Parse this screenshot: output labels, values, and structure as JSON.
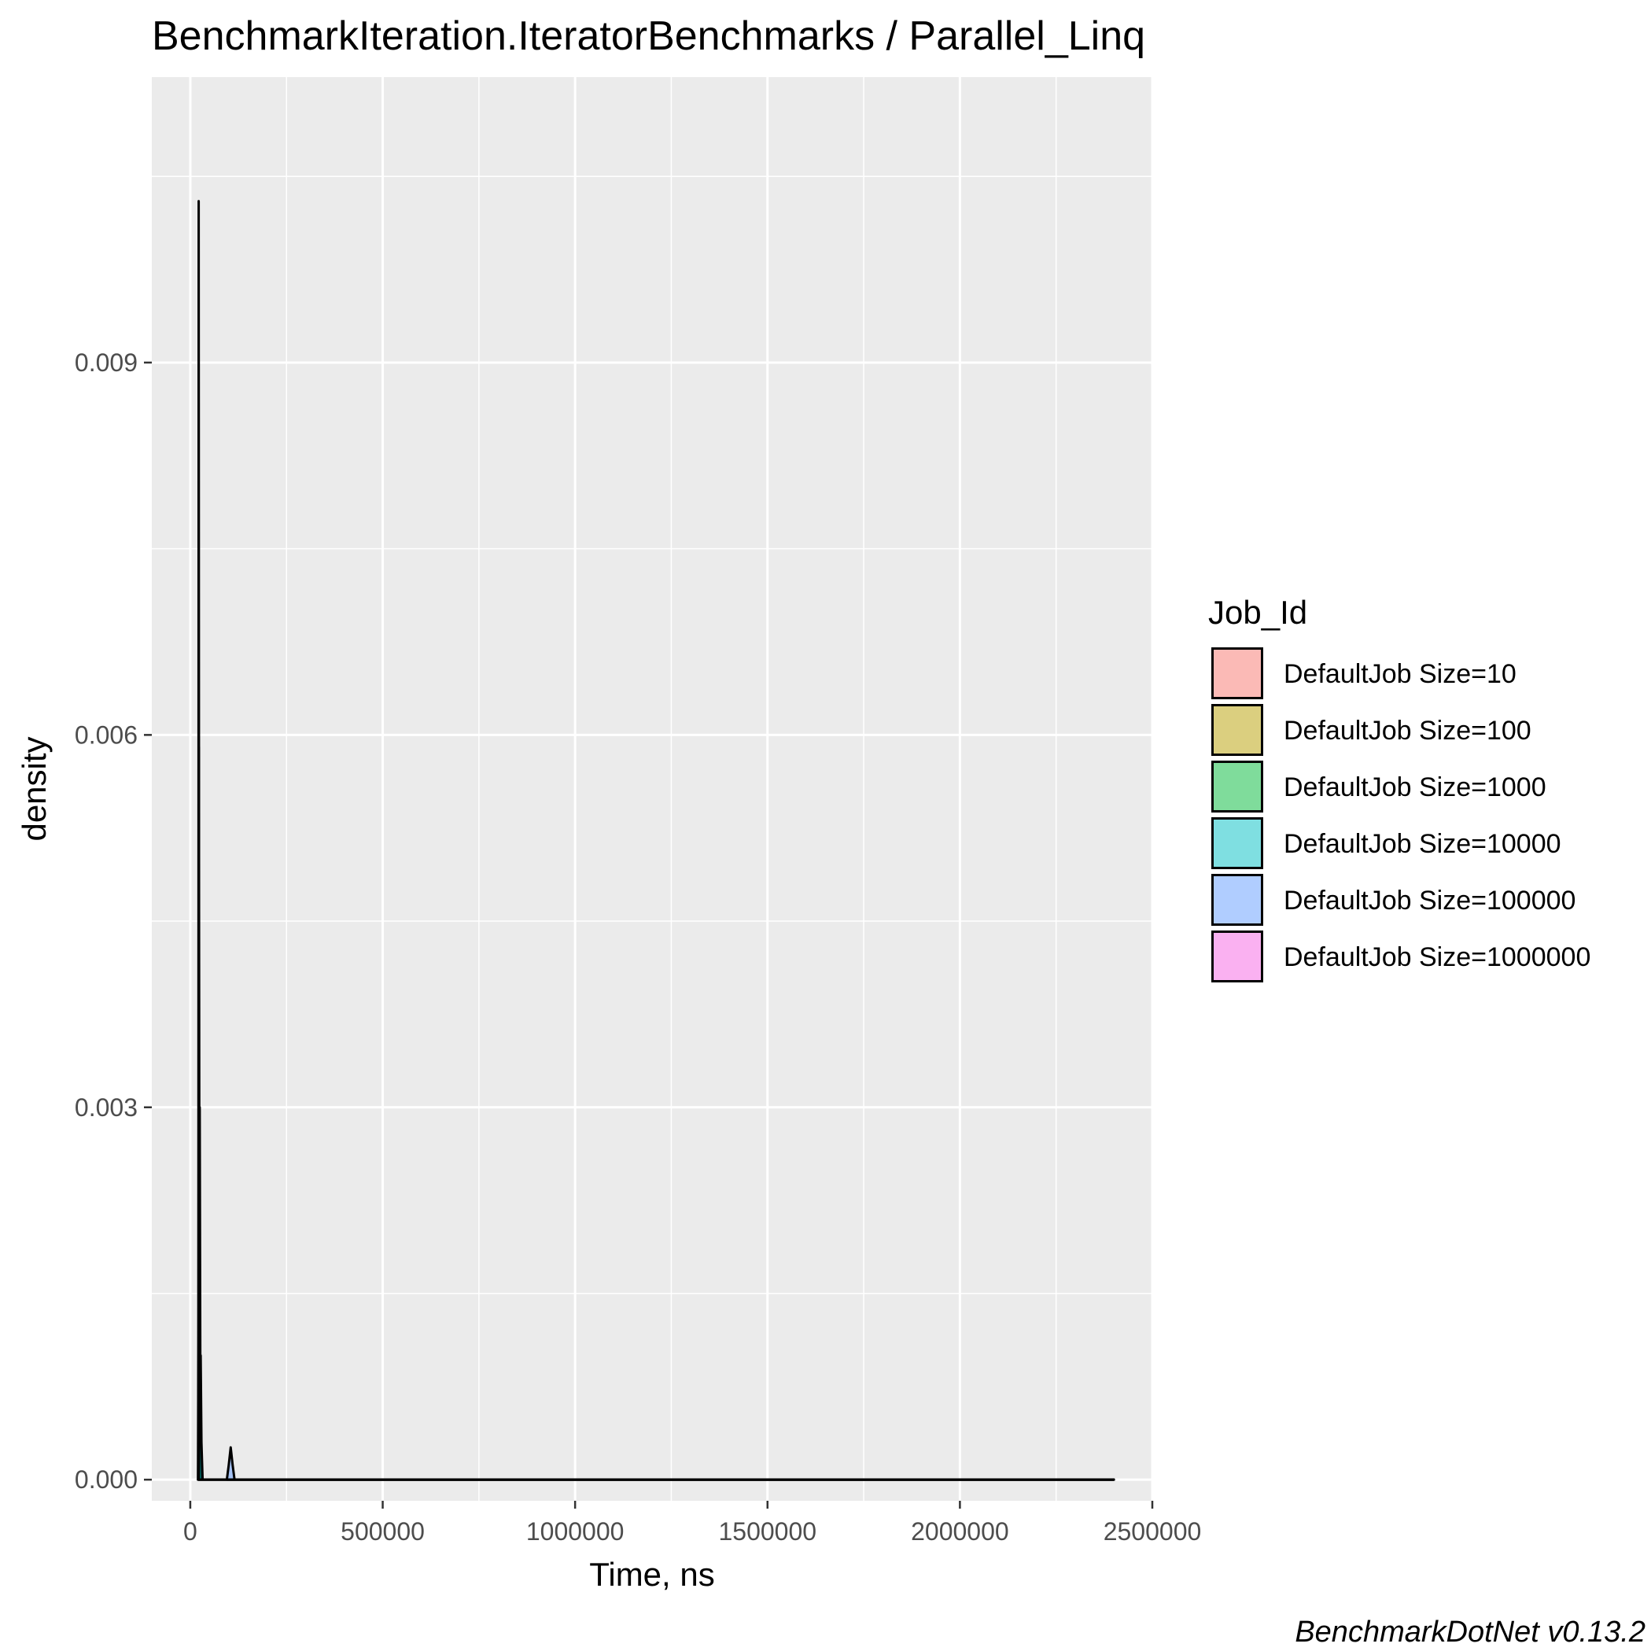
{
  "chart_data": {
    "type": "area",
    "title": "BenchmarkIteration.IteratorBenchmarks / Parallel_Linq",
    "xlabel": "Time, ns",
    "ylabel": "density",
    "xlim": [
      -100000,
      2500000
    ],
    "ylim": [
      -0.00017,
      0.0113
    ],
    "x_ticks": [
      0,
      500000,
      1000000,
      1500000,
      2000000,
      2500000
    ],
    "x_tick_labels": [
      "0",
      "500000",
      "1000000",
      "1500000",
      "2000000",
      "2500000"
    ],
    "y_ticks": [
      0,
      0.003,
      0.006,
      0.009
    ],
    "y_tick_labels": [
      "0.000",
      "0.003",
      "0.006",
      "0.009"
    ],
    "grid": true,
    "legend": {
      "title": "Job_Id",
      "position": "right"
    },
    "series": [
      {
        "name": "DefaultJob Size=10",
        "color": "#F8766D",
        "points": [
          [
            20000,
            0
          ],
          [
            21000,
            0.0011
          ],
          [
            21800,
            0.0103
          ],
          [
            22600,
            0.0052
          ],
          [
            24000,
            0
          ],
          [
            2400000,
            0
          ]
        ]
      },
      {
        "name": "DefaultJob Size=100",
        "color": "#B79F00",
        "points": [
          [
            20500,
            0
          ],
          [
            21500,
            0.0014
          ],
          [
            22300,
            0.0059
          ],
          [
            23200,
            0.002
          ],
          [
            25000,
            0
          ],
          [
            2400000,
            0
          ]
        ]
      },
      {
        "name": "DefaultJob Size=1000",
        "color": "#00BA38",
        "points": [
          [
            21000,
            0
          ],
          [
            23000,
            0.0021
          ],
          [
            24500,
            0.003
          ],
          [
            26000,
            0.001
          ],
          [
            29000,
            0
          ],
          [
            2400000,
            0
          ]
        ]
      },
      {
        "name": "DefaultJob Size=10000",
        "color": "#00BFC4",
        "points": [
          [
            22000,
            0
          ],
          [
            25000,
            0.0007
          ],
          [
            27000,
            0.001
          ],
          [
            29000,
            0.0003
          ],
          [
            32000,
            0
          ],
          [
            2400000,
            0
          ]
        ]
      },
      {
        "name": "DefaultJob Size=100000",
        "color": "#619CFF",
        "points": [
          [
            95000,
            0
          ],
          [
            100000,
            0.00012
          ],
          [
            105000,
            0.00026
          ],
          [
            110000,
            0.00012
          ],
          [
            115000,
            0
          ],
          [
            2400000,
            0
          ]
        ]
      },
      {
        "name": "DefaultJob Size=1000000",
        "color": "#F564E3",
        "points": [
          [
            20000,
            0
          ],
          [
            2400000,
            0
          ]
        ]
      }
    ],
    "caption": "BenchmarkDotNet v0.13.2"
  }
}
